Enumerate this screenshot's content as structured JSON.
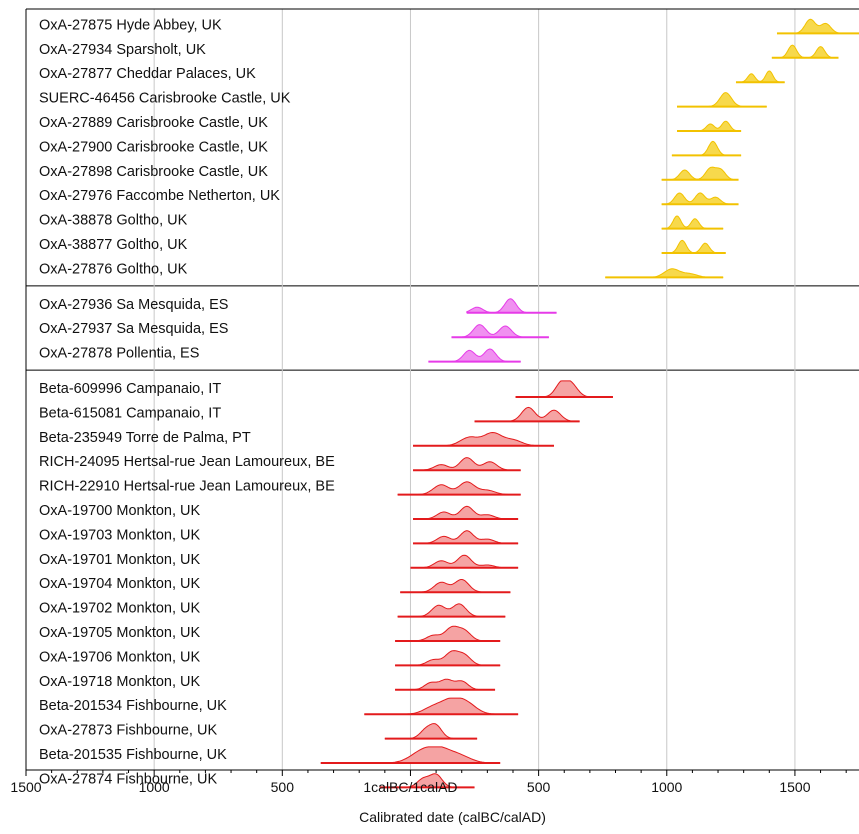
{
  "chart_data": {
    "type": "range",
    "title": "",
    "subtitle": "",
    "xlabel": "Calibrated date (calBC/calAD)",
    "ylabel": "",
    "xlim": [
      -1500,
      1750
    ],
    "x_ticks": [
      {
        "value": -1500,
        "label": "1500"
      },
      {
        "value": -1000,
        "label": "1000"
      },
      {
        "value": -500,
        "label": "500"
      },
      {
        "value": 0,
        "label": "1calBC/1calAD"
      },
      {
        "value": 500,
        "label": "500"
      },
      {
        "value": 1000,
        "label": "1000"
      },
      {
        "value": 1500,
        "label": "1500"
      }
    ],
    "grid": true,
    "groups": [
      {
        "color": "#f2c200",
        "fill": "#f7d94c",
        "items": [
          {
            "label": "OxA-27875 Hyde Abbey, UK",
            "range": [
              1430,
              1750
            ],
            "peaks": [
              [
                1560,
                1.0
              ],
              [
                1620,
                0.7
              ]
            ]
          },
          {
            "label": "OxA-27934 Sparsholt, UK",
            "range": [
              1410,
              1670
            ],
            "peaks": [
              [
                1490,
                0.9
              ],
              [
                1600,
                0.8
              ]
            ]
          },
          {
            "label": "OxA-27877 Cheddar Palaces, UK",
            "range": [
              1270,
              1460
            ],
            "peaks": [
              [
                1330,
                0.6
              ],
              [
                1400,
                0.8
              ]
            ]
          },
          {
            "label": "SUERC-46456 Carisbrooke Castle, UK",
            "range": [
              1040,
              1390
            ],
            "peaks": [
              [
                1230,
                1.0
              ]
            ]
          },
          {
            "label": "OxA-27889 Carisbrooke Castle, UK",
            "range": [
              1040,
              1290
            ],
            "peaks": [
              [
                1170,
                0.5
              ],
              [
                1230,
                0.7
              ]
            ]
          },
          {
            "label": "OxA-27900 Carisbrooke Castle, UK",
            "range": [
              1020,
              1290
            ],
            "peaks": [
              [
                1180,
                1.0
              ]
            ]
          },
          {
            "label": "OxA-27898 Carisbrooke Castle, UK",
            "range": [
              980,
              1280
            ],
            "peaks": [
              [
                1070,
                0.7
              ],
              [
                1170,
                0.8
              ],
              [
                1210,
                0.7
              ]
            ]
          },
          {
            "label": "OxA-27976 Faccombe Netherton, UK",
            "range": [
              980,
              1280
            ],
            "peaks": [
              [
                1050,
                0.8
              ],
              [
                1130,
                0.8
              ],
              [
                1190,
                0.5
              ]
            ]
          },
          {
            "label": "OxA-38878 Goltho, UK",
            "range": [
              980,
              1220
            ],
            "peaks": [
              [
                1040,
                0.9
              ],
              [
                1110,
                0.7
              ]
            ]
          },
          {
            "label": "OxA-38877 Goltho, UK",
            "range": [
              980,
              1230
            ],
            "peaks": [
              [
                1060,
                0.9
              ],
              [
                1150,
                0.7
              ]
            ]
          },
          {
            "label": "OxA-27876 Goltho, UK",
            "range": [
              760,
              1220
            ],
            "peaks": [
              [
                1020,
                0.6
              ],
              [
                1090,
                0.25
              ]
            ]
          }
        ]
      },
      {
        "color": "#e63be8",
        "fill": "#f090f0",
        "items": [
          {
            "label": "OxA-27936 Sa Mesquida, ES",
            "range": [
              220,
              570
            ],
            "peaks": [
              [
                260,
                0.4
              ],
              [
                390,
                1.0
              ]
            ]
          },
          {
            "label": "OxA-27937 Sa Mesquida, ES",
            "range": [
              160,
              540
            ],
            "peaks": [
              [
                270,
                0.9
              ],
              [
                370,
                0.8
              ]
            ]
          },
          {
            "label": "OxA-27878 Pollentia, ES",
            "range": [
              70,
              430
            ],
            "peaks": [
              [
                230,
                0.8
              ],
              [
                310,
                0.9
              ]
            ]
          }
        ]
      },
      {
        "color": "#e31a1c",
        "fill": "#f5a3a3",
        "items": [
          {
            "label": "Beta-609996 Campanaio, IT",
            "range": [
              410,
              790
            ],
            "peaks": [
              [
                590,
                1.0
              ],
              [
                630,
                0.8
              ]
            ]
          },
          {
            "label": "Beta-615081 Campanaio, IT",
            "range": [
              250,
              660
            ],
            "peaks": [
              [
                460,
                1.0
              ],
              [
                560,
                0.8
              ]
            ]
          },
          {
            "label": "Beta-235949 Torre de Palma, PT",
            "range": [
              10,
              560
            ],
            "peaks": [
              [
                230,
                0.6
              ],
              [
                320,
                0.9
              ],
              [
                400,
                0.4
              ]
            ]
          },
          {
            "label": "RICH-24095 Hertsal-rue Jean Lamoureux, BE",
            "range": [
              10,
              430
            ],
            "peaks": [
              [
                120,
                0.4
              ],
              [
                220,
                0.9
              ],
              [
                310,
                0.6
              ]
            ]
          },
          {
            "label": "RICH-22910 Hertsal-rue Jean Lamoureux, BE",
            "range": [
              -50,
              430
            ],
            "peaks": [
              [
                120,
                0.7
              ],
              [
                220,
                0.9
              ],
              [
                300,
                0.3
              ]
            ]
          },
          {
            "label": "OxA-19700 Monkton, UK",
            "range": [
              10,
              420
            ],
            "peaks": [
              [
                130,
                0.5
              ],
              [
                220,
                0.9
              ],
              [
                300,
                0.3
              ]
            ]
          },
          {
            "label": "OxA-19703 Monkton, UK",
            "range": [
              10,
              420
            ],
            "peaks": [
              [
                130,
                0.5
              ],
              [
                220,
                0.9
              ],
              [
                300,
                0.3
              ]
            ]
          },
          {
            "label": "OxA-19701 Monkton, UK",
            "range": [
              0,
              420
            ],
            "peaks": [
              [
                120,
                0.5
              ],
              [
                210,
                0.9
              ],
              [
                300,
                0.2
              ]
            ]
          },
          {
            "label": "OxA-19704 Monkton, UK",
            "range": [
              -40,
              390
            ],
            "peaks": [
              [
                120,
                0.7
              ],
              [
                200,
                0.9
              ]
            ]
          },
          {
            "label": "OxA-19702 Monkton, UK",
            "range": [
              -50,
              370
            ],
            "peaks": [
              [
                110,
                0.8
              ],
              [
                190,
                0.9
              ]
            ]
          },
          {
            "label": "OxA-19705 Monkton, UK",
            "range": [
              -60,
              350
            ],
            "peaks": [
              [
                90,
                0.4
              ],
              [
                160,
                0.9
              ],
              [
                210,
                0.7
              ]
            ]
          },
          {
            "label": "OxA-19706 Monkton, UK",
            "range": [
              -60,
              350
            ],
            "peaks": [
              [
                90,
                0.4
              ],
              [
                160,
                0.9
              ],
              [
                210,
                0.7
              ]
            ]
          },
          {
            "label": "OxA-19718 Monkton, UK",
            "range": [
              -60,
              330
            ],
            "peaks": [
              [
                80,
                0.5
              ],
              [
                140,
                0.7
              ],
              [
                200,
                0.6
              ]
            ]
          },
          {
            "label": "Beta-201534 Fishbourne, UK",
            "range": [
              -180,
              420
            ],
            "peaks": [
              [
                90,
                0.5
              ],
              [
                160,
                0.9
              ],
              [
                220,
                0.7
              ]
            ]
          },
          {
            "label": "OxA-27873 Fishbourne, UK",
            "range": [
              -100,
              260
            ],
            "peaks": [
              [
                60,
                0.6
              ],
              [
                100,
                0.9
              ]
            ]
          },
          {
            "label": "Beta-201535 Fishbourne, UK",
            "range": [
              -350,
              350
            ],
            "peaks": [
              [
                40,
                0.7
              ],
              [
                110,
                0.9
              ],
              [
                190,
                0.5
              ]
            ]
          },
          {
            "label": "OxA-27874 Fishbourne, UK",
            "range": [
              -120,
              250
            ],
            "peaks": [
              [
                50,
                0.6
              ],
              [
                100,
                0.9
              ]
            ]
          }
        ]
      }
    ]
  }
}
